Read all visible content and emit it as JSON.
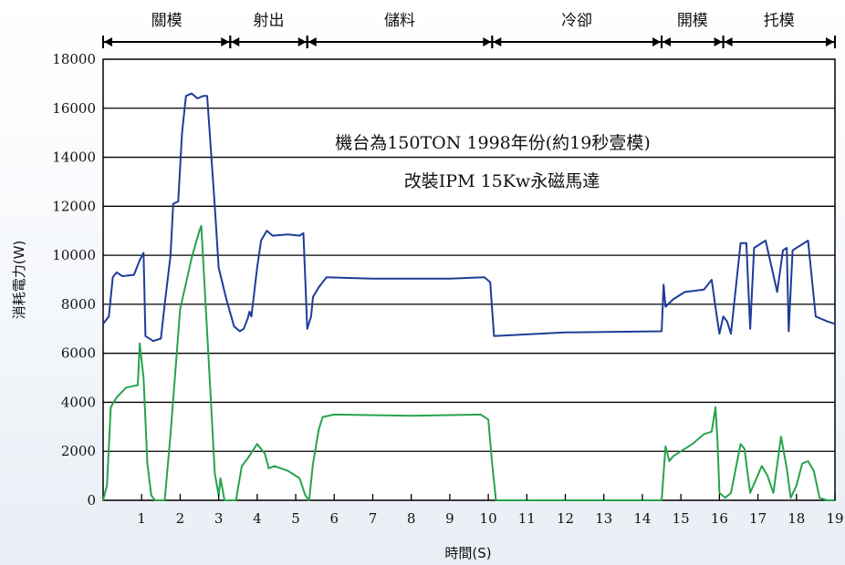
{
  "chart_data": {
    "type": "line",
    "xlabel": "時間(S)",
    "ylabel": "消耗電力(W)",
    "xlim": [
      0,
      19
    ],
    "ylim": [
      0,
      18000
    ],
    "x_ticks": [
      1,
      2,
      3,
      4,
      5,
      6,
      7,
      8,
      9,
      10,
      11,
      12,
      13,
      14,
      15,
      16,
      17,
      18,
      19
    ],
    "y_ticks": [
      0,
      2000,
      4000,
      6000,
      8000,
      10000,
      12000,
      14000,
      16000,
      18000
    ],
    "grid": "horizontal",
    "annotations": [
      "機台為150TON 1998年份(約19秒壹模)",
      "改裝IPM 15Kw永磁馬達"
    ],
    "phases": [
      {
        "label": "關模",
        "start": 0,
        "end": 3.3
      },
      {
        "label": "射出",
        "start": 3.3,
        "end": 5.3
      },
      {
        "label": "儲料",
        "start": 5.3,
        "end": 10.1
      },
      {
        "label": "冷卻",
        "start": 10.1,
        "end": 14.5
      },
      {
        "label": "開模",
        "start": 14.5,
        "end": 16.1
      },
      {
        "label": "托模",
        "start": 16.1,
        "end": 19
      }
    ],
    "series": [
      {
        "color": "#1f3c96",
        "points": [
          [
            0,
            7200
          ],
          [
            0.15,
            7500
          ],
          [
            0.25,
            9100
          ],
          [
            0.35,
            9300
          ],
          [
            0.5,
            9150
          ],
          [
            0.8,
            9200
          ],
          [
            0.95,
            9800
          ],
          [
            1.05,
            10100
          ],
          [
            1.1,
            6700
          ],
          [
            1.3,
            6500
          ],
          [
            1.5,
            6600
          ],
          [
            1.6,
            8000
          ],
          [
            1.75,
            10000
          ],
          [
            1.82,
            12100
          ],
          [
            1.95,
            12200
          ],
          [
            2.05,
            15000
          ],
          [
            2.15,
            16500
          ],
          [
            2.3,
            16600
          ],
          [
            2.45,
            16400
          ],
          [
            2.6,
            16500
          ],
          [
            2.7,
            16500
          ],
          [
            2.9,
            12000
          ],
          [
            3.0,
            9500
          ],
          [
            3.2,
            8200
          ],
          [
            3.4,
            7100
          ],
          [
            3.55,
            6900
          ],
          [
            3.65,
            7000
          ],
          [
            3.75,
            7400
          ],
          [
            3.8,
            7700
          ],
          [
            3.85,
            7500
          ],
          [
            4.0,
            9500
          ],
          [
            4.1,
            10600
          ],
          [
            4.25,
            11000
          ],
          [
            4.4,
            10800
          ],
          [
            4.8,
            10850
          ],
          [
            5.1,
            10800
          ],
          [
            5.2,
            10900
          ],
          [
            5.3,
            7000
          ],
          [
            5.4,
            7500
          ],
          [
            5.45,
            8300
          ],
          [
            5.6,
            8700
          ],
          [
            5.8,
            9100
          ],
          [
            7.0,
            9050
          ],
          [
            9.0,
            9050
          ],
          [
            9.9,
            9100
          ],
          [
            10.05,
            8900
          ],
          [
            10.15,
            6700
          ],
          [
            12.0,
            6850
          ],
          [
            14.5,
            6900
          ],
          [
            14.55,
            8800
          ],
          [
            14.6,
            7900
          ],
          [
            14.8,
            8200
          ],
          [
            15.1,
            8500
          ],
          [
            15.6,
            8600
          ],
          [
            15.8,
            9000
          ],
          [
            15.95,
            7300
          ],
          [
            16.0,
            6800
          ],
          [
            16.1,
            7500
          ],
          [
            16.2,
            7300
          ],
          [
            16.3,
            6800
          ],
          [
            16.55,
            10500
          ],
          [
            16.7,
            10500
          ],
          [
            16.8,
            7000
          ],
          [
            16.9,
            10300
          ],
          [
            17.2,
            10600
          ],
          [
            17.5,
            8500
          ],
          [
            17.65,
            10200
          ],
          [
            17.75,
            10300
          ],
          [
            17.8,
            6900
          ],
          [
            17.9,
            10200
          ],
          [
            18.3,
            10600
          ],
          [
            18.5,
            7500
          ],
          [
            18.8,
            7300
          ],
          [
            19,
            7200
          ]
        ]
      },
      {
        "color": "#27a34c",
        "points": [
          [
            0,
            0
          ],
          [
            0.1,
            600
          ],
          [
            0.2,
            3800
          ],
          [
            0.35,
            4200
          ],
          [
            0.6,
            4600
          ],
          [
            0.9,
            4700
          ],
          [
            0.95,
            6400
          ],
          [
            1.05,
            5000
          ],
          [
            1.15,
            1500
          ],
          [
            1.25,
            200
          ],
          [
            1.35,
            0
          ],
          [
            1.6,
            0
          ],
          [
            1.75,
            2700
          ],
          [
            2.0,
            7800
          ],
          [
            2.3,
            9900
          ],
          [
            2.5,
            11000
          ],
          [
            2.55,
            11200
          ],
          [
            2.8,
            4000
          ],
          [
            2.9,
            1100
          ],
          [
            3.0,
            200
          ],
          [
            3.05,
            900
          ],
          [
            3.15,
            0
          ],
          [
            3.45,
            0
          ],
          [
            3.6,
            1400
          ],
          [
            3.75,
            1700
          ],
          [
            4.0,
            2300
          ],
          [
            4.2,
            1900
          ],
          [
            4.3,
            1300
          ],
          [
            4.45,
            1400
          ],
          [
            4.8,
            1200
          ],
          [
            5.0,
            1000
          ],
          [
            5.1,
            900
          ],
          [
            5.25,
            200
          ],
          [
            5.35,
            0
          ],
          [
            5.45,
            1500
          ],
          [
            5.6,
            2900
          ],
          [
            5.7,
            3400
          ],
          [
            6.0,
            3500
          ],
          [
            8.0,
            3450
          ],
          [
            9.8,
            3500
          ],
          [
            10.0,
            3300
          ],
          [
            10.1,
            1500
          ],
          [
            10.2,
            0
          ],
          [
            14.5,
            0
          ],
          [
            14.6,
            2200
          ],
          [
            14.7,
            1600
          ],
          [
            14.8,
            1800
          ],
          [
            15.0,
            2000
          ],
          [
            15.3,
            2300
          ],
          [
            15.6,
            2700
          ],
          [
            15.8,
            2800
          ],
          [
            15.9,
            3800
          ],
          [
            15.95,
            2400
          ],
          [
            16.0,
            300
          ],
          [
            16.15,
            100
          ],
          [
            16.3,
            300
          ],
          [
            16.55,
            2300
          ],
          [
            16.65,
            2100
          ],
          [
            16.8,
            300
          ],
          [
            17.1,
            1400
          ],
          [
            17.25,
            1000
          ],
          [
            17.4,
            300
          ],
          [
            17.6,
            2600
          ],
          [
            17.75,
            1300
          ],
          [
            17.85,
            100
          ],
          [
            18.0,
            600
          ],
          [
            18.15,
            1500
          ],
          [
            18.3,
            1600
          ],
          [
            18.45,
            1200
          ],
          [
            18.6,
            100
          ],
          [
            18.8,
            0
          ],
          [
            19,
            0
          ]
        ]
      }
    ]
  }
}
